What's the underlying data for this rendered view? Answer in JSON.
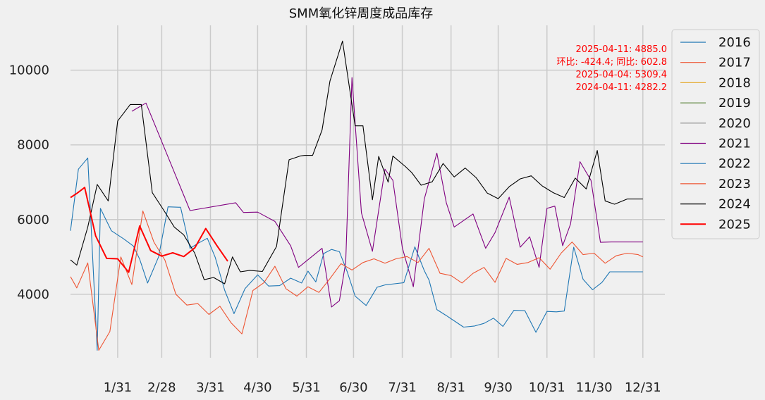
{
  "chart_data": {
    "type": "line",
    "title": "SMM氧化锌周度成品库存",
    "xlabel": "",
    "ylabel": "",
    "ylim": [
      2300,
      11200
    ],
    "xlim": [
      1,
      379
    ],
    "x_tick_labels": [
      "1/31",
      "2/28",
      "3/31",
      "4/30",
      "5/31",
      "6/30",
      "7/31",
      "8/31",
      "9/30",
      "10/31",
      "11/30",
      "12/31"
    ],
    "x_tick_days": [
      31,
      59,
      90,
      120,
      151,
      181,
      212,
      243,
      273,
      304,
      334,
      365
    ],
    "y_ticks": [
      4000,
      6000,
      8000,
      10000
    ],
    "grid": true,
    "legend_position": "right",
    "annotations": [
      "2025-04-11: 4885.0",
      "环比: -424.4; 同比: 602.8",
      "2025-04-04: 5309.4",
      "2024-04-11: 4282.2"
    ],
    "series": [
      {
        "name": "2016",
        "color": "#1f77b4",
        "x": [],
        "y": []
      },
      {
        "name": "2017",
        "color": "#ee5533",
        "x": [],
        "y": []
      },
      {
        "name": "2018",
        "color": "#e5ae38",
        "x": [],
        "y": []
      },
      {
        "name": "2019",
        "color": "#6d904f",
        "x": [],
        "y": []
      },
      {
        "name": "2020",
        "color": "#8b8b8b",
        "x": [],
        "y": []
      },
      {
        "name": "2021",
        "color": "#800080",
        "x": [
          40,
          49,
          77,
          106,
          111,
          120,
          131,
          141,
          146,
          161,
          167,
          172,
          176,
          180,
          186,
          193,
          201,
          206,
          212,
          219,
          226,
          234,
          240,
          245,
          257,
          265,
          271,
          280,
          287,
          293,
          299,
          304,
          309,
          314,
          319,
          325,
          332,
          338,
          345,
          350,
          365
        ],
        "y": [
          8900,
          9120,
          6240,
          6450,
          6190,
          6200,
          5950,
          5300,
          4720,
          5230,
          3660,
          3830,
          4850,
          9800,
          6180,
          5150,
          7350,
          7050,
          5250,
          4200,
          6550,
          7780,
          6450,
          5800,
          6150,
          5230,
          5650,
          6600,
          5260,
          5540,
          4720,
          6300,
          6360,
          5300,
          5880,
          7550,
          7050,
          5390,
          5400,
          5400,
          5400
        ]
      },
      {
        "name": "2022",
        "color": "#1f77b4",
        "x": [
          1,
          6,
          12,
          18,
          20,
          27,
          35,
          41,
          45,
          50,
          57,
          63,
          71,
          77,
          82,
          88,
          93,
          99,
          105,
          112,
          120,
          127,
          134,
          141,
          148,
          152,
          157,
          162,
          167,
          172,
          177,
          182,
          189,
          196,
          201,
          207,
          213,
          220,
          226,
          229,
          234,
          240,
          251,
          258,
          264,
          270,
          276,
          283,
          290,
          297,
          304,
          310,
          315,
          321,
          327,
          333,
          339,
          344,
          350,
          358,
          365
        ],
        "y": [
          5700,
          7350,
          7650,
          2500,
          6300,
          5700,
          5480,
          5290,
          4940,
          4300,
          5000,
          6340,
          6330,
          5230,
          5360,
          5500,
          4990,
          4110,
          3480,
          4150,
          4520,
          4220,
          4230,
          4430,
          4300,
          4620,
          4330,
          5090,
          5200,
          5140,
          4600,
          3950,
          3700,
          4190,
          4250,
          4280,
          4310,
          5270,
          4630,
          4380,
          3590,
          3430,
          3120,
          3150,
          3220,
          3360,
          3140,
          3570,
          3560,
          2980,
          3540,
          3530,
          3550,
          5260,
          4400,
          4120,
          4320,
          4600,
          4600,
          4600,
          4600
        ]
      },
      {
        "name": "2023",
        "color": "#ee5533",
        "x": [
          1,
          5,
          12,
          19,
          26,
          33,
          40,
          47,
          54,
          61,
          68,
          75,
          82,
          89,
          96,
          103,
          110,
          117,
          124,
          131,
          138,
          145,
          152,
          159,
          166,
          173,
          180,
          187,
          194,
          201,
          208,
          215,
          222,
          229,
          236,
          243,
          250,
          257,
          264,
          271,
          278,
          285,
          292,
          299,
          306,
          313,
          320,
          327,
          334,
          341,
          348,
          355,
          362,
          365
        ],
        "y": [
          4470,
          4170,
          4840,
          2500,
          3000,
          5000,
          4260,
          6230,
          5400,
          4920,
          4000,
          3710,
          3750,
          3460,
          3680,
          3240,
          2940,
          4100,
          4310,
          4750,
          4150,
          3950,
          4200,
          4050,
          4420,
          4820,
          4650,
          4850,
          4950,
          4830,
          4950,
          5010,
          4850,
          5230,
          4560,
          4500,
          4300,
          4560,
          4720,
          4320,
          4960,
          4800,
          4850,
          4980,
          4670,
          5100,
          5400,
          5060,
          5100,
          4830,
          5030,
          5100,
          5060,
          5000
        ]
      },
      {
        "name": "2024",
        "color": "#000000",
        "x": [
          1,
          5,
          12,
          18,
          25,
          31,
          39,
          46,
          53,
          60,
          67,
          73,
          80,
          86,
          92,
          99,
          104,
          109,
          115,
          123,
          132,
          140,
          147,
          150,
          155,
          161,
          166,
          174,
          182,
          187,
          193,
          197,
          203,
          206,
          214,
          218,
          224,
          231,
          238,
          245,
          252,
          259,
          266,
          273,
          280,
          287,
          294,
          301,
          308,
          315,
          322,
          329,
          336,
          341,
          347,
          355,
          361,
          365
        ],
        "y": [
          4920,
          4780,
          5800,
          6940,
          6500,
          8640,
          9080,
          9080,
          6720,
          6270,
          5800,
          5590,
          5100,
          4390,
          4450,
          4280,
          5000,
          4600,
          4640,
          4610,
          5280,
          7600,
          7700,
          7720,
          7720,
          8400,
          9710,
          10780,
          8510,
          8510,
          6530,
          7690,
          7000,
          7700,
          7420,
          7260,
          6920,
          7010,
          7500,
          7140,
          7380,
          7120,
          6710,
          6560,
          6880,
          7090,
          7170,
          6900,
          6720,
          6590,
          7110,
          6820,
          7850,
          6500,
          6410,
          6550,
          6550,
          6550
        ]
      },
      {
        "name": "2025",
        "color": "#ff0000",
        "x": [
          1,
          5,
          10,
          17,
          24,
          31,
          38,
          45,
          52,
          59,
          66,
          73,
          80,
          87,
          94,
          101
        ],
        "y": [
          6590,
          6700,
          6860,
          5560,
          4960,
          4950,
          4590,
          5830,
          5170,
          5020,
          5110,
          5010,
          5240,
          5760,
          5310,
          4885
        ]
      }
    ]
  }
}
